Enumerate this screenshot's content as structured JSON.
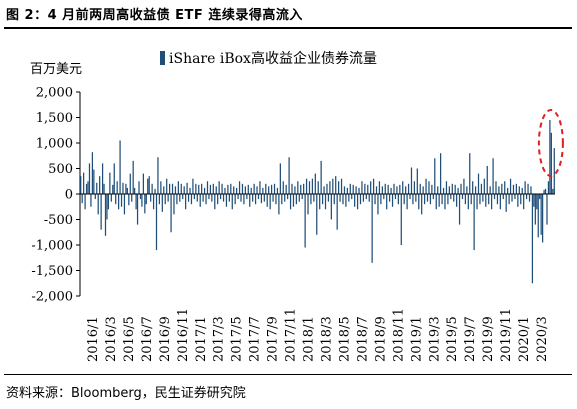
{
  "header": {
    "title": "图 2：4 月前两周高收益债 ETF 连续录得高流入"
  },
  "footer": {
    "source": "资料来源：Bloomberg，民生证券研究院"
  },
  "chart_data": {
    "type": "bar",
    "unit_label": "百万美元",
    "legend": {
      "label": "iShare iBox高收益企业债券流量",
      "color": "#1f4e79"
    },
    "highlight": {
      "type": "dashed-ellipse",
      "color": "#e02020",
      "target": "2020/4 peak"
    },
    "ylim": [
      -2000,
      2000
    ],
    "y_ticks": [
      2000,
      1500,
      1000,
      500,
      0,
      -500,
      -1000,
      -1500,
      -2000
    ],
    "y_tick_labels": [
      "2,000",
      "1,500",
      "1,000",
      "500",
      "0",
      "-500",
      "-1,000",
      "-1,500",
      "-2,000"
    ],
    "x_tick_labels": [
      "2016/1",
      "2016/3",
      "2016/5",
      "2016/7",
      "2016/9",
      "2016/11",
      "2017/1",
      "2017/3",
      "2017/5",
      "2017/7",
      "2017/9",
      "2017/11",
      "2018/1",
      "2018/3",
      "2018/5",
      "2018/7",
      "2018/9",
      "2018/11",
      "2019/1",
      "2019/3",
      "2019/5",
      "2019/7",
      "2019/9",
      "2019/11",
      "2020/1",
      "2020/3"
    ],
    "series": [
      {
        "color": "#1f4e79",
        "values": [
          350,
          -180,
          420,
          -300,
          200,
          250,
          600,
          -250,
          820,
          480,
          -100,
          220,
          -400,
          350,
          -700,
          600,
          200,
          -820,
          -500,
          -300,
          420,
          -150,
          180,
          600,
          -200,
          250,
          -300,
          1050,
          -250,
          220,
          -400,
          200,
          120,
          -220,
          400,
          -150,
          650,
          120,
          -300,
          -600,
          250,
          -100,
          -250,
          400,
          -380,
          -200,
          300,
          350,
          -150,
          200,
          -300,
          100,
          -1100,
          720,
          -200,
          250,
          -350,
          150,
          -200,
          300,
          -150,
          200,
          -750,
          200,
          -400,
          150,
          -200,
          250,
          -150,
          200,
          -100,
          150,
          -300,
          220,
          -150,
          120,
          -200,
          300,
          -100,
          200,
          -150,
          180,
          -250,
          200,
          -150,
          120,
          -200,
          250,
          -100,
          180,
          -150,
          200,
          -300,
          150,
          -200,
          250,
          -100,
          200,
          -150,
          120,
          -250,
          180,
          -150,
          200,
          -300,
          150,
          -200,
          120,
          -100,
          250,
          -150,
          200,
          -200,
          150,
          -100,
          180,
          -250,
          120,
          -150,
          200,
          -200,
          150,
          -100,
          250,
          -180,
          120,
          -150,
          200,
          -250,
          150,
          -300,
          180,
          -150,
          200,
          -200,
          120,
          -400,
          600,
          -200,
          250,
          -150,
          180,
          -100,
          720,
          -300,
          200,
          -250,
          150,
          -200,
          250,
          -150,
          180,
          -100,
          200,
          -1050,
          300,
          -400,
          250,
          -200,
          300,
          -150,
          400,
          -800,
          250,
          -300,
          650,
          -200,
          150,
          -300,
          200,
          -150,
          250,
          -500,
          300,
          -200,
          350,
          -700,
          250,
          -150,
          300,
          -200,
          150,
          -250,
          120,
          -150,
          200,
          -100,
          180,
          -250,
          150,
          -300,
          120,
          -200,
          250,
          -150,
          200,
          -100,
          180,
          -150,
          250,
          -1350,
          300,
          -200,
          150,
          -400,
          250,
          -200,
          150,
          -100,
          200,
          -300,
          180,
          -150,
          120,
          -250,
          200,
          -100,
          150,
          -200,
          180,
          -1000,
          250,
          -200,
          150,
          -300,
          200,
          -100,
          520,
          -200,
          250,
          -150,
          500,
          -300,
          200,
          -400,
          150,
          -200,
          300,
          -150,
          250,
          -200,
          180,
          -100,
          700,
          -300,
          150,
          -250,
          800,
          -200,
          120,
          -300,
          250,
          -200,
          150,
          -100,
          200,
          -150,
          180,
          -250,
          120,
          -600,
          200,
          -100,
          300,
          -200,
          150,
          -300,
          800,
          -200,
          250,
          -1100,
          150,
          -300,
          400,
          -200,
          200,
          -150,
          300,
          -250,
          550,
          -200,
          150,
          -300,
          700,
          -100,
          250,
          -200,
          150,
          -300,
          200,
          -100,
          250,
          -350,
          120,
          -200,
          300,
          -150,
          180,
          -100,
          200,
          -250,
          150,
          -200,
          120,
          -300,
          250,
          -100,
          200,
          -150,
          150,
          -1750,
          -250,
          -600,
          -300,
          -850,
          -100,
          -800,
          -950,
          80,
          100,
          -600,
          250,
          1450,
          1200,
          100,
          900
        ]
      }
    ]
  }
}
